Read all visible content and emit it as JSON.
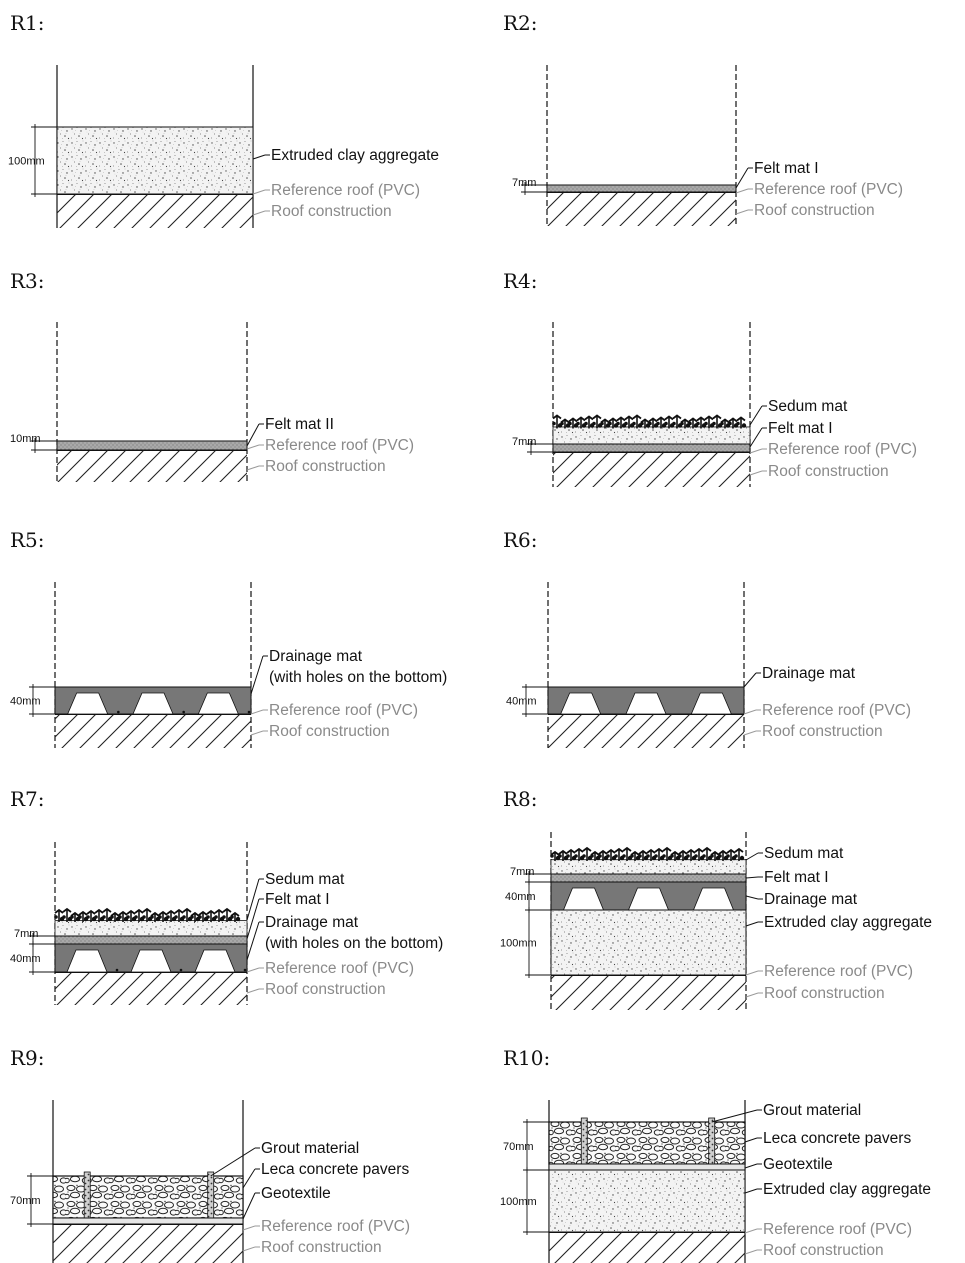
{
  "figure": {
    "panels": [
      {
        "id": "R1",
        "title": "R1:",
        "layers": [
          {
            "name": "Extruded clay aggregate",
            "type": "aggregate",
            "thickness": "100mm"
          },
          {
            "name": "Reference roof (PVC)",
            "type": "reference"
          },
          {
            "name": "Roof construction",
            "type": "construction"
          }
        ]
      },
      {
        "id": "R2",
        "title": "R2:",
        "layers": [
          {
            "name": "Felt mat I",
            "type": "felt",
            "thickness": "7mm"
          },
          {
            "name": "Reference roof (PVC)",
            "type": "reference"
          },
          {
            "name": "Roof construction",
            "type": "construction"
          }
        ]
      },
      {
        "id": "R3",
        "title": "R3:",
        "layers": [
          {
            "name": "Felt mat II",
            "type": "felt",
            "thickness": "10mm"
          },
          {
            "name": "Reference roof (PVC)",
            "type": "reference"
          },
          {
            "name": "Roof construction",
            "type": "construction"
          }
        ]
      },
      {
        "id": "R4",
        "title": "R4:",
        "layers": [
          {
            "name": "Sedum mat",
            "type": "sedum"
          },
          {
            "name": "Felt mat I",
            "type": "felt",
            "thickness": "7mm"
          },
          {
            "name": "Reference roof (PVC)",
            "type": "reference"
          },
          {
            "name": "Roof construction",
            "type": "construction"
          }
        ]
      },
      {
        "id": "R5",
        "title": "R5:",
        "layers": [
          {
            "name": "Drainage mat",
            "name2": "(with holes on the bottom)",
            "type": "drainage",
            "thickness": "40mm",
            "holes": true
          },
          {
            "name": "Reference roof (PVC)",
            "type": "reference"
          },
          {
            "name": "Roof construction",
            "type": "construction"
          }
        ]
      },
      {
        "id": "R6",
        "title": "R6:",
        "layers": [
          {
            "name": "Drainage mat",
            "type": "drainage",
            "thickness": "40mm"
          },
          {
            "name": "Reference roof (PVC)",
            "type": "reference"
          },
          {
            "name": "Roof construction",
            "type": "construction"
          }
        ]
      },
      {
        "id": "R7",
        "title": "R7:",
        "layers": [
          {
            "name": "Sedum mat",
            "type": "sedum"
          },
          {
            "name": "Felt mat I",
            "type": "felt",
            "thickness": "7mm"
          },
          {
            "name": "Drainage mat",
            "name2": "(with holes on the bottom)",
            "type": "drainage",
            "thickness": "40mm",
            "holes": true
          },
          {
            "name": "Reference roof (PVC)",
            "type": "reference"
          },
          {
            "name": "Roof construction",
            "type": "construction"
          }
        ]
      },
      {
        "id": "R8",
        "title": "R8:",
        "layers": [
          {
            "name": "Sedum mat",
            "type": "sedum"
          },
          {
            "name": "Felt mat I",
            "type": "felt",
            "thickness": "7mm"
          },
          {
            "name": "Drainage mat",
            "type": "drainage",
            "thickness": "40mm"
          },
          {
            "name": "Extruded clay aggregate",
            "type": "aggregate",
            "thickness": "100mm"
          },
          {
            "name": "Reference roof (PVC)",
            "type": "reference"
          },
          {
            "name": "Roof construction",
            "type": "construction"
          }
        ]
      },
      {
        "id": "R9",
        "title": "R9:",
        "layers": [
          {
            "name": "Grout material",
            "type": "grout"
          },
          {
            "name": "Leca concrete pavers",
            "type": "pavers",
            "thickness": "70mm"
          },
          {
            "name": "Geotextile",
            "type": "geotextile"
          },
          {
            "name": "Reference roof (PVC)",
            "type": "reference"
          },
          {
            "name": "Roof construction",
            "type": "construction"
          }
        ]
      },
      {
        "id": "R10",
        "title": "R10:",
        "layers": [
          {
            "name": "Grout material",
            "type": "grout"
          },
          {
            "name": "Leca concrete pavers",
            "type": "pavers",
            "thickness": "70mm"
          },
          {
            "name": "Geotextile",
            "type": "geotextile"
          },
          {
            "name": "Extruded clay aggregate",
            "type": "aggregate",
            "thickness": "100mm"
          },
          {
            "name": "Reference roof (PVC)",
            "type": "reference"
          },
          {
            "name": "Roof construction",
            "type": "construction"
          }
        ]
      }
    ],
    "colors": {
      "ink": "#111111",
      "reference_label": "#8a8a8a",
      "drainage_fill": "#777777",
      "felt_fill": "#9a9a9a",
      "aggregate_fill": "#f2f2f2"
    }
  }
}
